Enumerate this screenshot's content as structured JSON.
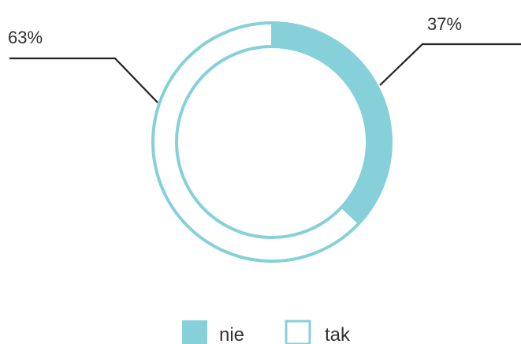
{
  "chart_data": {
    "type": "pie",
    "title": "",
    "categories": [
      "nie",
      "tak"
    ],
    "values": [
      37,
      63
    ],
    "labels": [
      "37%",
      "63%"
    ],
    "legend": {
      "position": "bottom",
      "items": [
        {
          "label": "nie",
          "style": "filled",
          "color": "#86D0DA"
        },
        {
          "label": "tak",
          "style": "outline",
          "color": "#86D0DA"
        }
      ]
    },
    "colors": {
      "accent": "#86D0DA",
      "leader": "#222222"
    }
  }
}
